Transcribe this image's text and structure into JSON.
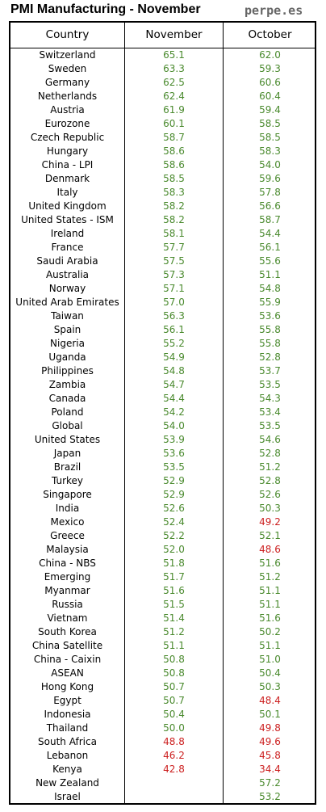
{
  "title": "PMI Manufacturing - November",
  "source": "perpe.es",
  "colors": {
    "expansion": "#4a8a2e",
    "contraction": "#cc2020"
  },
  "threshold": 50,
  "table": {
    "headers": [
      "Country",
      "November",
      "October"
    ],
    "rows": [
      [
        "Switzerland",
        "65.1",
        "62.0"
      ],
      [
        "Sweden",
        "63.3",
        "59.3"
      ],
      [
        "Germany",
        "62.5",
        "60.6"
      ],
      [
        "Netherlands",
        "62.4",
        "60.4"
      ],
      [
        "Austria",
        "61.9",
        "59.4"
      ],
      [
        "Eurozone",
        "60.1",
        "58.5"
      ],
      [
        "Czech Republic",
        "58.7",
        "58.5"
      ],
      [
        "Hungary",
        "58.6",
        "58.3"
      ],
      [
        "China - LPI",
        "58.6",
        "54.0"
      ],
      [
        "Denmark",
        "58.5",
        "59.6"
      ],
      [
        "Italy",
        "58.3",
        "57.8"
      ],
      [
        "United Kingdom",
        "58.2",
        "56.6"
      ],
      [
        "United States - ISM",
        "58.2",
        "58.7"
      ],
      [
        "Ireland",
        "58.1",
        "54.4"
      ],
      [
        "France",
        "57.7",
        "56.1"
      ],
      [
        "Saudi Arabia",
        "57.5",
        "55.6"
      ],
      [
        "Australia",
        "57.3",
        "51.1"
      ],
      [
        "Norway",
        "57.1",
        "54.8"
      ],
      [
        "United Arab Emirates",
        "57.0",
        "55.9"
      ],
      [
        "Taiwan",
        "56.3",
        "53.6"
      ],
      [
        "Spain",
        "56.1",
        "55.8"
      ],
      [
        "Nigeria",
        "55.2",
        "55.8"
      ],
      [
        "Uganda",
        "54.9",
        "52.8"
      ],
      [
        "Philippines",
        "54.8",
        "53.7"
      ],
      [
        "Zambia",
        "54.7",
        "53.5"
      ],
      [
        "Canada",
        "54.4",
        "54.3"
      ],
      [
        "Poland",
        "54.2",
        "53.4"
      ],
      [
        "Global",
        "54.0",
        "53.5"
      ],
      [
        "United States",
        "53.9",
        "54.6"
      ],
      [
        "Japan",
        "53.6",
        "52.8"
      ],
      [
        "Brazil",
        "53.5",
        "51.2"
      ],
      [
        "Turkey",
        "52.9",
        "52.8"
      ],
      [
        "Singapore",
        "52.9",
        "52.6"
      ],
      [
        "India",
        "52.6",
        "50.3"
      ],
      [
        "Mexico",
        "52.4",
        "49.2"
      ],
      [
        "Greece",
        "52.2",
        "52.1"
      ],
      [
        "Malaysia",
        "52.0",
        "48.6"
      ],
      [
        "China - NBS",
        "51.8",
        "51.6"
      ],
      [
        "Emerging",
        "51.7",
        "51.2"
      ],
      [
        "Myanmar",
        "51.6",
        "51.1"
      ],
      [
        "Russia",
        "51.5",
        "51.1"
      ],
      [
        "Vietnam",
        "51.4",
        "51.6"
      ],
      [
        "South Korea",
        "51.2",
        "50.2"
      ],
      [
        "China Satellite",
        "51.1",
        "51.1"
      ],
      [
        "China - Caixin",
        "50.8",
        "51.0"
      ],
      [
        "ASEAN",
        "50.8",
        "50.4"
      ],
      [
        "Hong Kong",
        "50.7",
        "50.3"
      ],
      [
        "Egypt",
        "50.7",
        "48.4"
      ],
      [
        "Indonesia",
        "50.4",
        "50.1"
      ],
      [
        "Thailand",
        "50.0",
        "49.8"
      ],
      [
        "South Africa",
        "48.8",
        "49.6"
      ],
      [
        "Lebanon",
        "46.2",
        "45.8"
      ],
      [
        "Kenya",
        "42.8",
        "34.4"
      ],
      [
        "New Zealand",
        "",
        "57.2"
      ],
      [
        "Israel",
        "",
        "53.2"
      ]
    ]
  }
}
